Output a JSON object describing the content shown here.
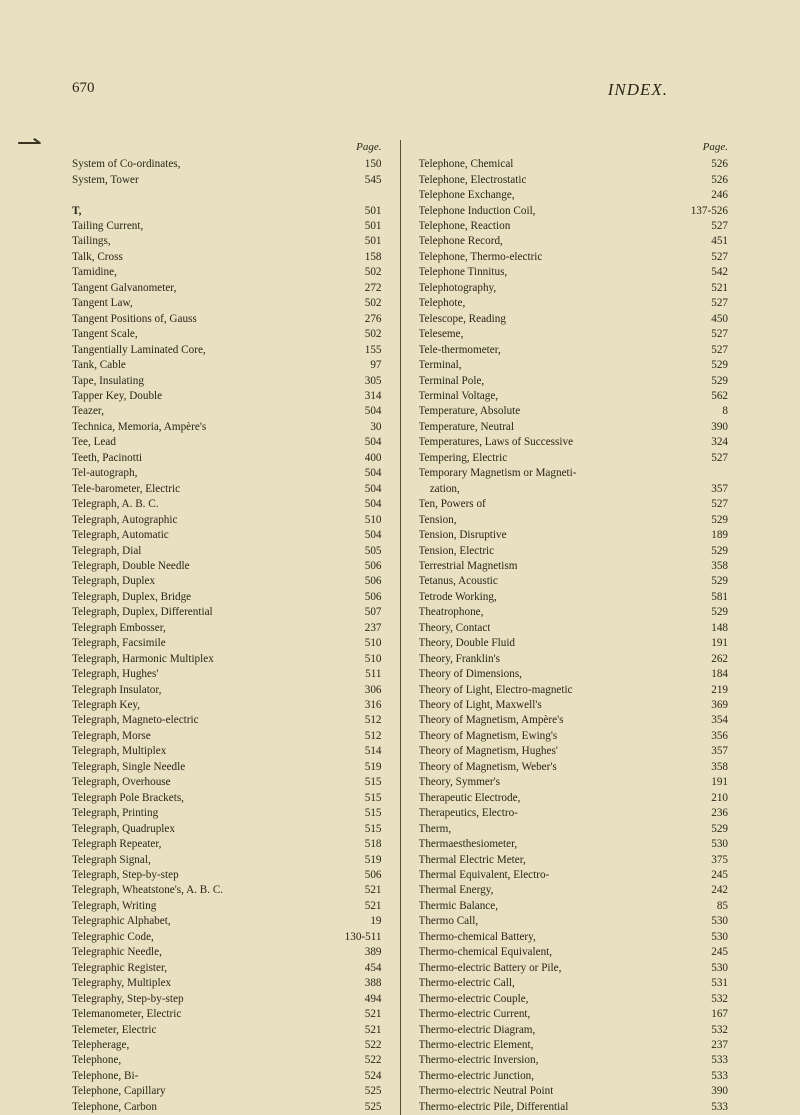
{
  "page_number": "670",
  "title": "INDEX.",
  "page_label": "Page.",
  "colors": {
    "background": "#e8e0c0",
    "text": "#2a2618",
    "divider": "#5a5030"
  },
  "typography": {
    "body_fontsize": 11.2,
    "header_fontsize": 15,
    "title_fontsize": 17,
    "line_height": 1.38
  },
  "left_column": [
    {
      "term": "System of Co-ordinates,",
      "page": "150"
    },
    {
      "term": "System, Tower",
      "page": "545"
    },
    {
      "term": "",
      "page": ""
    },
    {
      "term": "T,",
      "page": "501",
      "bold": true
    },
    {
      "term": "Tailing Current,",
      "page": "501"
    },
    {
      "term": "Tailings,",
      "page": "501"
    },
    {
      "term": "Talk, Cross",
      "page": "158"
    },
    {
      "term": "Tamidine,",
      "page": "502"
    },
    {
      "term": "Tangent Galvanometer,",
      "page": "272"
    },
    {
      "term": "Tangent Law,",
      "page": "502"
    },
    {
      "term": "Tangent Positions of, Gauss",
      "page": "276"
    },
    {
      "term": "Tangent Scale,",
      "page": "502"
    },
    {
      "term": "Tangentially Laminated Core,",
      "page": "155"
    },
    {
      "term": "Tank, Cable",
      "page": "97"
    },
    {
      "term": "Tape, Insulating",
      "page": "305"
    },
    {
      "term": "Tapper Key, Double",
      "page": "314"
    },
    {
      "term": "Teazer,",
      "page": "504"
    },
    {
      "term": "Technica, Memoria, Ampère's",
      "page": "30"
    },
    {
      "term": "Tee, Lead",
      "page": "504"
    },
    {
      "term": "Teeth, Pacinotti",
      "page": "400"
    },
    {
      "term": "Tel-autograph,",
      "page": "504"
    },
    {
      "term": "Tele-barometer, Electric",
      "page": "504"
    },
    {
      "term": "Telegraph, A. B. C.",
      "page": "504"
    },
    {
      "term": "Telegraph, Autographic",
      "page": "510"
    },
    {
      "term": "Telegraph, Automatic",
      "page": "504"
    },
    {
      "term": "Telegraph, Dial",
      "page": "505"
    },
    {
      "term": "Telegraph, Double Needle",
      "page": "506"
    },
    {
      "term": "Telegraph, Duplex",
      "page": "506"
    },
    {
      "term": "Telegraph, Duplex, Bridge",
      "page": "506"
    },
    {
      "term": "Telegraph, Duplex, Differential",
      "page": "507"
    },
    {
      "term": "Telegraph Embosser,",
      "page": "237"
    },
    {
      "term": "Telegraph, Facsimile",
      "page": "510"
    },
    {
      "term": "Telegraph, Harmonic Multiplex",
      "page": "510"
    },
    {
      "term": "Telegraph, Hughes'",
      "page": "511"
    },
    {
      "term": "Telegraph Insulator,",
      "page": "306"
    },
    {
      "term": "Telegraph Key,",
      "page": "316"
    },
    {
      "term": "Telegraph, Magneto-electric",
      "page": "512"
    },
    {
      "term": "Telegraph, Morse",
      "page": "512"
    },
    {
      "term": "Telegraph, Multiplex",
      "page": "514"
    },
    {
      "term": "Telegraph, Single Needle",
      "page": "519"
    },
    {
      "term": "Telegraph, Overhouse",
      "page": "515"
    },
    {
      "term": "Telegraph Pole Brackets,",
      "page": "515"
    },
    {
      "term": "Telegraph, Printing",
      "page": "515"
    },
    {
      "term": "Telegraph, Quadruplex",
      "page": "515"
    },
    {
      "term": "Telegraph Repeater,",
      "page": "518"
    },
    {
      "term": "Telegraph Signal,",
      "page": "519"
    },
    {
      "term": "Telegraph, Step-by-step",
      "page": "506"
    },
    {
      "term": "Telegraph, Wheatstone's, A. B. C.",
      "page": "521"
    },
    {
      "term": "Telegraph, Writing",
      "page": "521"
    },
    {
      "term": "Telegraphic Alphabet,",
      "page": "19"
    },
    {
      "term": "Telegraphic Code,",
      "page": "130-511"
    },
    {
      "term": "Telegraphic Needle,",
      "page": "389"
    },
    {
      "term": "Telegraphic Register,",
      "page": "454"
    },
    {
      "term": "Telegraphy, Multiplex",
      "page": "388"
    },
    {
      "term": "Telegraphy, Step-by-step",
      "page": "494"
    },
    {
      "term": "Telemanometer, Electric",
      "page": "521"
    },
    {
      "term": "Telemeter, Electric",
      "page": "521"
    },
    {
      "term": "Telepherage,",
      "page": "522"
    },
    {
      "term": "Telephone,",
      "page": "522"
    },
    {
      "term": "Telephone, Bi-",
      "page": "524"
    },
    {
      "term": "Telephone, Capillary",
      "page": "525"
    },
    {
      "term": "Telephone, Carbon",
      "page": "525"
    }
  ],
  "right_column": [
    {
      "term": "Telephone, Chemical",
      "page": "526"
    },
    {
      "term": "Telephone, Electrostatic",
      "page": "526"
    },
    {
      "term": "Telephone Exchange,",
      "page": "246"
    },
    {
      "term": "Telephone Induction Coil,",
      "page": "137-526"
    },
    {
      "term": "Telephone, Reaction",
      "page": "527"
    },
    {
      "term": "Telephone Record,",
      "page": "451"
    },
    {
      "term": "Telephone, Thermo-electric",
      "page": "527"
    },
    {
      "term": "Telephone Tinnitus,",
      "page": "542"
    },
    {
      "term": "Telephotography,",
      "page": "521"
    },
    {
      "term": "Telephote,",
      "page": "527"
    },
    {
      "term": "Telescope, Reading",
      "page": "450"
    },
    {
      "term": "Teleseme,",
      "page": "527"
    },
    {
      "term": "Tele-thermometer,",
      "page": "527"
    },
    {
      "term": "Terminal,",
      "page": "529"
    },
    {
      "term": "Terminal Pole,",
      "page": "529"
    },
    {
      "term": "Terminal Voltage,",
      "page": "562"
    },
    {
      "term": "Temperature, Absolute",
      "page": "8"
    },
    {
      "term": "Temperature, Neutral",
      "page": "390"
    },
    {
      "term": "Temperatures, Laws of Successive",
      "page": "324"
    },
    {
      "term": "Tempering, Electric",
      "page": "527"
    },
    {
      "term": "Temporary Magnetism or Magneti-",
      "page": ""
    },
    {
      "term": "    zation,",
      "page": "357"
    },
    {
      "term": "Ten, Powers of",
      "page": "527"
    },
    {
      "term": "Tension,",
      "page": "529"
    },
    {
      "term": "Tension, Disruptive",
      "page": "189"
    },
    {
      "term": "Tension, Electric",
      "page": "529"
    },
    {
      "term": "Terrestrial Magnetism",
      "page": "358"
    },
    {
      "term": "Tetanus, Acoustic",
      "page": "529"
    },
    {
      "term": "Tetrode Working,",
      "page": "581"
    },
    {
      "term": "Theatrophone,",
      "page": "529"
    },
    {
      "term": "Theory, Contact",
      "page": "148"
    },
    {
      "term": "Theory, Double Fluid",
      "page": "191"
    },
    {
      "term": "Theory, Franklin's",
      "page": "262"
    },
    {
      "term": "Theory of Dimensions,",
      "page": "184"
    },
    {
      "term": "Theory of Light, Electro-magnetic",
      "page": "219"
    },
    {
      "term": "Theory of Light, Maxwell's",
      "page": "369"
    },
    {
      "term": "Theory of Magnetism, Ampère's",
      "page": "354"
    },
    {
      "term": "Theory of Magnetism, Ewing's",
      "page": "356"
    },
    {
      "term": "Theory of Magnetism, Hughes'",
      "page": "357"
    },
    {
      "term": "Theory of Magnetism, Weber's",
      "page": "358"
    },
    {
      "term": "Theory, Symmer's",
      "page": "191"
    },
    {
      "term": "Therapeutic Electrode,",
      "page": "210"
    },
    {
      "term": "Therapeutics, Electro-",
      "page": "236"
    },
    {
      "term": "Therm,",
      "page": "529"
    },
    {
      "term": "Thermaesthesiometer,",
      "page": "530"
    },
    {
      "term": "Thermal Electric Meter,",
      "page": "375"
    },
    {
      "term": "Thermal Equivalent, Electro-",
      "page": "245"
    },
    {
      "term": "Thermal Energy,",
      "page": "242"
    },
    {
      "term": "Thermic Balance,",
      "page": "85"
    },
    {
      "term": "Thermo Call,",
      "page": "530"
    },
    {
      "term": "Thermo-chemical Battery,",
      "page": "530"
    },
    {
      "term": "Thermo-chemical Equivalent,",
      "page": "245"
    },
    {
      "term": "Thermo-electric Battery or Pile,",
      "page": "530"
    },
    {
      "term": "Thermo-electric Call,",
      "page": "531"
    },
    {
      "term": "Thermo-electric Couple,",
      "page": "532"
    },
    {
      "term": "Thermo-electric Current,",
      "page": "167"
    },
    {
      "term": "Thermo-electric Diagram,",
      "page": "532"
    },
    {
      "term": "Thermo-electric Element,",
      "page": "237"
    },
    {
      "term": "Thermo-electric Inversion,",
      "page": "533"
    },
    {
      "term": "Thermo-electric Junction,",
      "page": "533"
    },
    {
      "term": "Thermo-electric Neutral Point",
      "page": "390"
    },
    {
      "term": "Thermo-electric Pile, Differential",
      "page": "533"
    }
  ]
}
